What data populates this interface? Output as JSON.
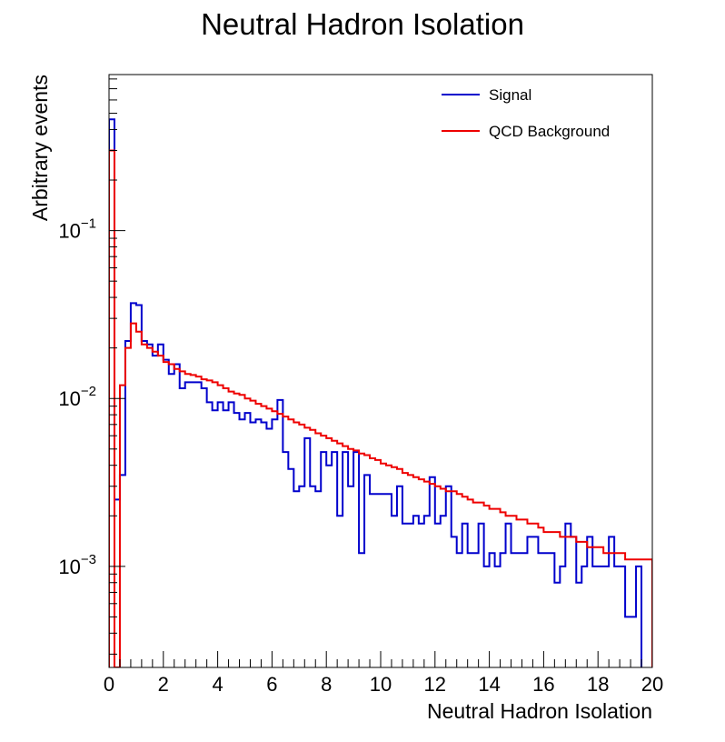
{
  "chart_data": {
    "type": "line",
    "title": "Neutral Hadron Isolation",
    "xlabel": "Neutral Hadron Isolation",
    "ylabel": "Arbitrary events",
    "xlim": [
      0,
      20
    ],
    "ylim": [
      0.00025,
      0.85
    ],
    "yscale": "log",
    "step": true,
    "grid": false,
    "legend_position": "top-right",
    "x_ticks": [
      0,
      2,
      4,
      6,
      8,
      10,
      12,
      14,
      16,
      18,
      20
    ],
    "x_tick_labels": [
      "0",
      "2",
      "4",
      "6",
      "8",
      "10",
      "12",
      "14",
      "16",
      "18",
      "20"
    ],
    "y_ticks": [
      {
        "value": 0.001,
        "base": "10",
        "exp": "−3"
      },
      {
        "value": 0.01,
        "base": "10",
        "exp": "−2"
      },
      {
        "value": 0.1,
        "base": "10",
        "exp": "−1"
      }
    ],
    "bin_width": 0.2,
    "x": [
      0.0,
      0.2,
      0.4,
      0.6,
      0.8,
      1.0,
      1.2,
      1.4,
      1.6,
      1.8,
      2.0,
      2.2,
      2.4,
      2.6,
      2.8,
      3.0,
      3.2,
      3.4,
      3.6,
      3.8,
      4.0,
      4.2,
      4.4,
      4.6,
      4.8,
      5.0,
      5.2,
      5.4,
      5.6,
      5.8,
      6.0,
      6.2,
      6.4,
      6.6,
      6.8,
      7.0,
      7.2,
      7.4,
      7.6,
      7.8,
      8.0,
      8.2,
      8.4,
      8.6,
      8.8,
      9.0,
      9.2,
      9.4,
      9.6,
      9.8,
      10.0,
      10.2,
      10.4,
      10.6,
      10.8,
      11.0,
      11.2,
      11.4,
      11.6,
      11.8,
      12.0,
      12.2,
      12.4,
      12.6,
      12.8,
      13.0,
      13.2,
      13.4,
      13.6,
      13.8,
      14.0,
      14.2,
      14.4,
      14.6,
      14.8,
      15.0,
      15.2,
      15.4,
      15.6,
      15.8,
      16.0,
      16.2,
      16.4,
      16.6,
      16.8,
      17.0,
      17.2,
      17.4,
      17.6,
      17.8,
      18.0,
      18.2,
      18.4,
      18.6,
      18.8,
      19.0,
      19.2,
      19.4,
      19.6,
      19.8
    ],
    "series": [
      {
        "name": "Signal",
        "color": "#0000cc",
        "values": [
          0.46,
          0.0025,
          0.0035,
          0.022,
          0.037,
          0.036,
          0.022,
          0.021,
          0.018,
          0.021,
          0.017,
          0.014,
          0.016,
          0.0115,
          0.0125,
          0.0125,
          0.0125,
          0.0115,
          0.0095,
          0.0085,
          0.0095,
          0.0085,
          0.0095,
          0.0082,
          0.0075,
          0.0082,
          0.0072,
          0.0075,
          0.0072,
          0.0066,
          0.0075,
          0.0098,
          0.0048,
          0.0038,
          0.0028,
          0.003,
          0.0058,
          0.003,
          0.0028,
          0.0048,
          0.004,
          0.0048,
          0.002,
          0.0048,
          0.003,
          0.0048,
          0.0012,
          0.0035,
          0.0027,
          0.0027,
          0.0027,
          0.0027,
          0.002,
          0.003,
          0.0018,
          0.0018,
          0.002,
          0.0018,
          0.002,
          0.0034,
          0.0018,
          0.002,
          0.003,
          0.0015,
          0.0012,
          0.0018,
          0.0012,
          0.0012,
          0.0018,
          0.001,
          0.0012,
          0.001,
          0.0012,
          0.0018,
          0.0012,
          0.0012,
          0.0012,
          0.0015,
          0.0015,
          0.0012,
          0.0012,
          0.0012,
          0.0008,
          0.001,
          0.0018,
          0.0015,
          0.0008,
          0.001,
          0.0015,
          0.001,
          0.001,
          0.001,
          0.0015,
          0.001,
          0.001,
          0.0005,
          0.0005,
          0.001,
          0.0002,
          0.0002
        ]
      },
      {
        "name": "QCD Background",
        "color": "#ee0000",
        "values": [
          0.3,
          0.00025,
          0.012,
          0.02,
          0.028,
          0.025,
          0.021,
          0.02,
          0.019,
          0.018,
          0.0165,
          0.016,
          0.015,
          0.0145,
          0.014,
          0.0138,
          0.0135,
          0.013,
          0.0128,
          0.0125,
          0.012,
          0.0115,
          0.011,
          0.0107,
          0.0105,
          0.01,
          0.0097,
          0.0093,
          0.009,
          0.0087,
          0.0084,
          0.0081,
          0.0078,
          0.0075,
          0.0072,
          0.007,
          0.0067,
          0.0065,
          0.0062,
          0.006,
          0.0058,
          0.0056,
          0.0054,
          0.0052,
          0.005,
          0.0049,
          0.0047,
          0.0046,
          0.0044,
          0.0043,
          0.0041,
          0.004,
          0.0039,
          0.0038,
          0.0036,
          0.0035,
          0.0034,
          0.0033,
          0.0032,
          0.0031,
          0.003,
          0.0029,
          0.0028,
          0.0028,
          0.0027,
          0.0026,
          0.0025,
          0.0024,
          0.0024,
          0.0023,
          0.0022,
          0.0022,
          0.0021,
          0.002,
          0.002,
          0.0019,
          0.0019,
          0.0018,
          0.0018,
          0.0017,
          0.0016,
          0.0016,
          0.0016,
          0.0015,
          0.0015,
          0.0015,
          0.0014,
          0.0014,
          0.0013,
          0.0013,
          0.0013,
          0.0012,
          0.0012,
          0.0012,
          0.0012,
          0.0011,
          0.0011,
          0.0011,
          0.0011,
          0.0011
        ]
      }
    ]
  }
}
